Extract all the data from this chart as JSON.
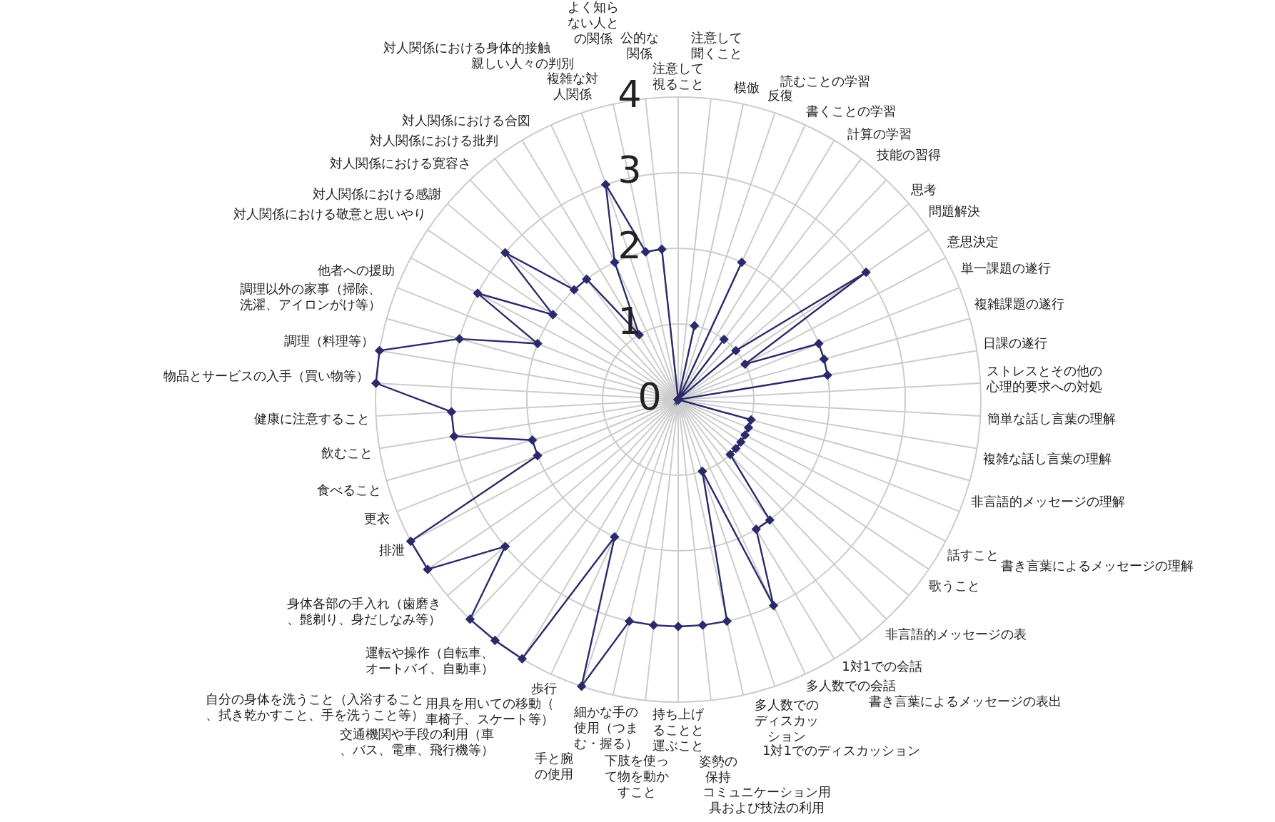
{
  "chart_data": {
    "type": "radar",
    "categories": [
      "注意して視ること",
      "注意して聞くこと",
      "模倣",
      "反復",
      "読むことの学習",
      "書くことの学習",
      "計算の学習",
      "技能の習得",
      "思考",
      "問題解決",
      "意思決定",
      "単一課題の遂行",
      "複雑課題の遂行",
      "日課の遂行",
      "ストレスとその他の心理的要求への対処",
      "簡単な話し言葉の理解",
      "複雑な話し言葉の理解",
      "非言語的メッセージの理解",
      "書き言葉によるメッセージの理解",
      "話すこと",
      "歌うこと",
      "非言語的メッセージの表",
      "書き言葉によるメッセージの表出",
      "1対1での会話",
      "多人数での会話",
      "1対1でのディスカッション",
      "多人数でのディスカッション",
      "コミュニケーション用具および技法の利用",
      "姿勢の保持",
      "持ち上げることと運ぶこと",
      "下肢を使って物を動かすこと",
      "細かな手の使用（つまむ・握る）",
      "手と腕の使用",
      "歩行",
      "用具を用いての移動（車椅子、スケート等）",
      "交通機関や手段の利用（車、バス、電車、飛行機等）",
      "運転や操作（自転車、オートバイ、自動車）",
      "自分の身体を洗うこと（入浴すること、拭き乾かすこと、手を洗うこと等）",
      "身体各部の手入れ（歯磨き、髭剃り、身だしなみ等）",
      "排泄",
      "更衣",
      "食べること",
      "飲むこと",
      "健康に注意すること",
      "物品とサービスの入手（買い物等）",
      "調理（料理等）",
      "調理以外の家事（掃除、洗濯、アイロンがけ等）",
      "他者への援助",
      "対人関係における敬意と思いやり",
      "対人関係における感謝",
      "対人関係における寛容さ",
      "対人関係における批判",
      "対人関係における合図",
      "対人関係における身体的接触",
      "親しい人々の判別",
      "複雑な対人関係",
      "よく知らない人との関係",
      "公的な関係"
    ],
    "series": [
      {
        "color": "#2b2b6b",
        "values": [
          0,
          0,
          1,
          0,
          2,
          0,
          1,
          0,
          1,
          3,
          1,
          2,
          2,
          2,
          0,
          0,
          0,
          1,
          1,
          1,
          1,
          1,
          1,
          2,
          2,
          3,
          1,
          3,
          3,
          3,
          3,
          3,
          4,
          2,
          4,
          4,
          4,
          3,
          4,
          4,
          2,
          2,
          3,
          3,
          4,
          4,
          3,
          2,
          3,
          2,
          3,
          2,
          2,
          1,
          2,
          3,
          2,
          2
        ]
      }
    ],
    "ylim": [
      0,
      4
    ],
    "yticks": [
      0,
      1,
      2,
      3,
      4
    ],
    "grid": true,
    "marker": "diamond",
    "legend": false
  }
}
